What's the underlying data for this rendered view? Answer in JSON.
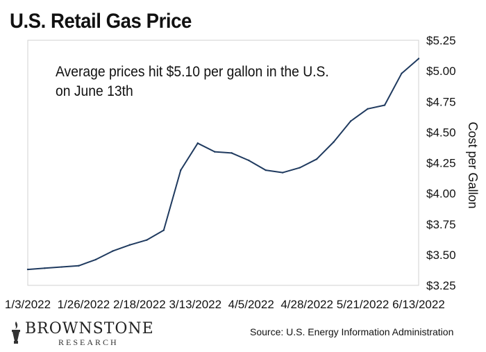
{
  "title": "U.S. Retail Gas Price",
  "annotation": {
    "line1": "Average prices hit $5.10 per gallon in the U.S.",
    "line2": "on June 13th"
  },
  "logo": {
    "name": "BROWNSTONE",
    "sub": "RESEARCH"
  },
  "source": "Source: U.S. Energy Information Administration",
  "chart_data": {
    "type": "line",
    "title": "U.S. Retail Gas Price",
    "xlabel": "",
    "ylabel": "Cost per Gallon",
    "ylim": [
      3.25,
      5.25
    ],
    "x_tick_labels": [
      "1/3/2022",
      "1/26/2022",
      "2/18/2022",
      "3/13/2022",
      "4/5/2022",
      "4/28/2022",
      "5/21/2022",
      "6/13/2022"
    ],
    "y_tick_labels": [
      "$3.25",
      "$3.50",
      "$3.75",
      "$4.00",
      "$4.25",
      "$4.50",
      "$4.75",
      "$5.00",
      "$5.25"
    ],
    "y_ticks": [
      3.25,
      3.5,
      3.75,
      4.0,
      4.25,
      4.5,
      4.75,
      5.0,
      5.25
    ],
    "grid": false,
    "line_color": "#1f3a5f",
    "x": [
      "2022-01-03",
      "2022-01-10",
      "2022-01-17",
      "2022-01-24",
      "2022-01-31",
      "2022-02-07",
      "2022-02-14",
      "2022-02-21",
      "2022-02-28",
      "2022-03-07",
      "2022-03-14",
      "2022-03-21",
      "2022-03-28",
      "2022-04-04",
      "2022-04-11",
      "2022-04-18",
      "2022-04-25",
      "2022-05-02",
      "2022-05-09",
      "2022-05-16",
      "2022-05-23",
      "2022-05-30",
      "2022-06-06",
      "2022-06-13"
    ],
    "values": [
      3.38,
      3.39,
      3.4,
      3.41,
      3.46,
      3.53,
      3.58,
      3.62,
      3.7,
      4.19,
      4.41,
      4.34,
      4.33,
      4.27,
      4.19,
      4.17,
      4.21,
      4.28,
      4.42,
      4.59,
      4.69,
      4.72,
      4.98,
      5.1
    ]
  }
}
